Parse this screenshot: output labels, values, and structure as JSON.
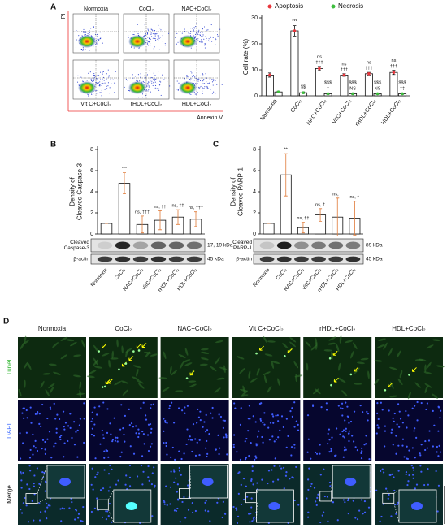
{
  "figure": {
    "panel_labels": [
      "A",
      "B",
      "C",
      "D"
    ]
  },
  "flow": {
    "conditions": [
      "Normoxia",
      "CoCl₂",
      "NAC+CoCl₂",
      "Vit C+CoCl₂",
      "rHDL+CoCl₂",
      "HDL+CoCl₂"
    ],
    "x_label": "Annexin V",
    "y_label": "PI"
  },
  "chart_data": [
    {
      "type": "bar",
      "ylabel": [
        "Cell rate (%)"
      ],
      "categories": [
        "Normoxia",
        "CoCl₂",
        "NAC+CoCl₂",
        "VitC+CoCl₂",
        "rHDL+CoCl₂",
        "HDL+CoCl₂"
      ],
      "series": [
        {
          "name": "Apoptosis",
          "color": "#e8363c",
          "values": [
            8,
            25,
            10.5,
            8,
            8.5,
            9
          ],
          "errors": [
            0.8,
            2,
            0.8,
            0.5,
            0.5,
            0.8
          ],
          "marks": [
            [],
            [
              "***"
            ],
            [
              "ns",
              "†††"
            ],
            [
              "ns",
              "†††"
            ],
            [
              "ns",
              "†††"
            ],
            [
              "ns",
              "†††"
            ]
          ]
        },
        {
          "name": "Necrosis",
          "color": "#3dbd3d",
          "values": [
            1.5,
            1.2,
            0.8,
            0.8,
            0.8,
            0.8
          ],
          "errors": [
            0.3,
            0.3,
            0.2,
            0.2,
            0.2,
            0.2
          ],
          "marks": [
            [],
            [
              "$$"
            ],
            [
              "$$$",
              "‡"
            ],
            [
              "$$$",
              "NS"
            ],
            [
              "$$$",
              "NS"
            ],
            [
              "$$$",
              "‡‡"
            ]
          ]
        }
      ],
      "ylim": [
        0,
        30
      ],
      "yticks": [
        0,
        10,
        20,
        30
      ],
      "bar_fill": "#ffffff",
      "error_color": "#111111"
    },
    {
      "type": "bar",
      "ylabel": [
        "Density of",
        "Cleaved Caspase-3"
      ],
      "categories": [
        "Normoxia",
        "CoCl₂",
        "NAC+CoCl₂",
        "VitC+CoCl₂",
        "rHDL+CoCl₂",
        "HDL+CoCl₂"
      ],
      "values": [
        1,
        4.8,
        0.9,
        1.3,
        1.6,
        1.4
      ],
      "errors": [
        0,
        1,
        0.8,
        0.9,
        0.7,
        0.7
      ],
      "marks": [
        [],
        [
          "***"
        ],
        [
          "ns, †††"
        ],
        [
          "ns, ††"
        ],
        [
          "ns, ††"
        ],
        [
          "ns, †††"
        ]
      ],
      "color": "#e8363c",
      "ylim": [
        0,
        8
      ],
      "yticks": [
        0,
        2,
        4,
        6,
        8
      ],
      "bar_fill": "#ffffff",
      "error_color": "#e07b39"
    },
    {
      "type": "bar",
      "ylabel": [
        "Density of",
        "Cleaved PARP-1"
      ],
      "categories": [
        "Normoxia",
        "CoCl₂",
        "NAC+CoCl₂",
        "VitC+CoCl₂",
        "rHDL+CoCl₂",
        "HDL+CoCl₂"
      ],
      "values": [
        1,
        5.6,
        0.6,
        1.8,
        1.6,
        1.5
      ],
      "errors": [
        0,
        2,
        0.5,
        0.6,
        1.8,
        1.6
      ],
      "marks": [
        [],
        [
          "**"
        ],
        [
          "ns, ††"
        ],
        [
          "ns, †"
        ],
        [
          "ns, †"
        ],
        [
          "ns, †"
        ]
      ],
      "color": "#e8363c",
      "ylim": [
        0,
        8
      ],
      "yticks": [
        0,
        2,
        4,
        6,
        8
      ],
      "bar_fill": "#ffffff",
      "error_color": "#e07b39"
    }
  ],
  "blots": [
    {
      "rows": [
        [
          "Cleaved",
          "Caspase-3"
        ],
        [
          "β-actin"
        ]
      ],
      "sizes": [
        "17, 19 kDa",
        "45 kDa"
      ]
    },
    {
      "rows": [
        [
          "Cleaved",
          "PARP-1"
        ],
        [
          "β-actin"
        ]
      ],
      "sizes": [
        "89 kDa",
        "45 kDa"
      ]
    }
  ],
  "microscopy": {
    "columns": [
      "Normoxia",
      "CoCl₂",
      "NAC+CoCl₂",
      "Vit C+CoCl₂",
      "rHDL+CoCl₂",
      "HDL+CoCl₂"
    ],
    "rows": [
      "Tunel",
      "DAPI",
      "Merge"
    ]
  }
}
